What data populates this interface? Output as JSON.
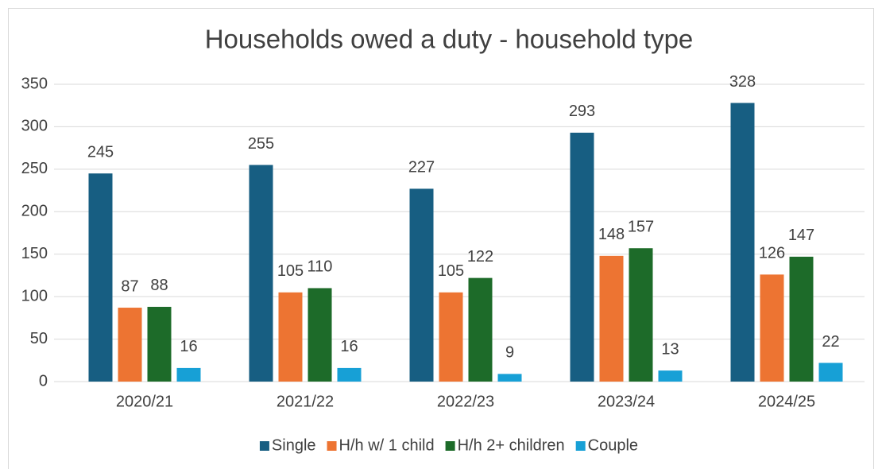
{
  "chart_data": {
    "type": "bar",
    "title": "Households owed a duty - household type",
    "categories": [
      "2020/21",
      "2021/22",
      "2022/23",
      "2023/24",
      "2024/25"
    ],
    "series": [
      {
        "name": "Single",
        "color": "#175e82",
        "values": [
          245,
          255,
          227,
          293,
          328
        ]
      },
      {
        "name": "H/h w/ 1 child",
        "color": "#ed7432",
        "values": [
          87,
          105,
          105,
          148,
          126
        ]
      },
      {
        "name": "H/h 2+ children",
        "color": "#1d6b29",
        "values": [
          88,
          110,
          122,
          157,
          147
        ]
      },
      {
        "name": "Couple",
        "color": "#17a0d6",
        "values": [
          16,
          16,
          9,
          13,
          22
        ]
      }
    ],
    "ylim": [
      0,
      350
    ],
    "yticks": [
      0,
      50,
      100,
      150,
      200,
      250,
      300,
      350
    ],
    "grid": true,
    "legend": "bottom"
  }
}
